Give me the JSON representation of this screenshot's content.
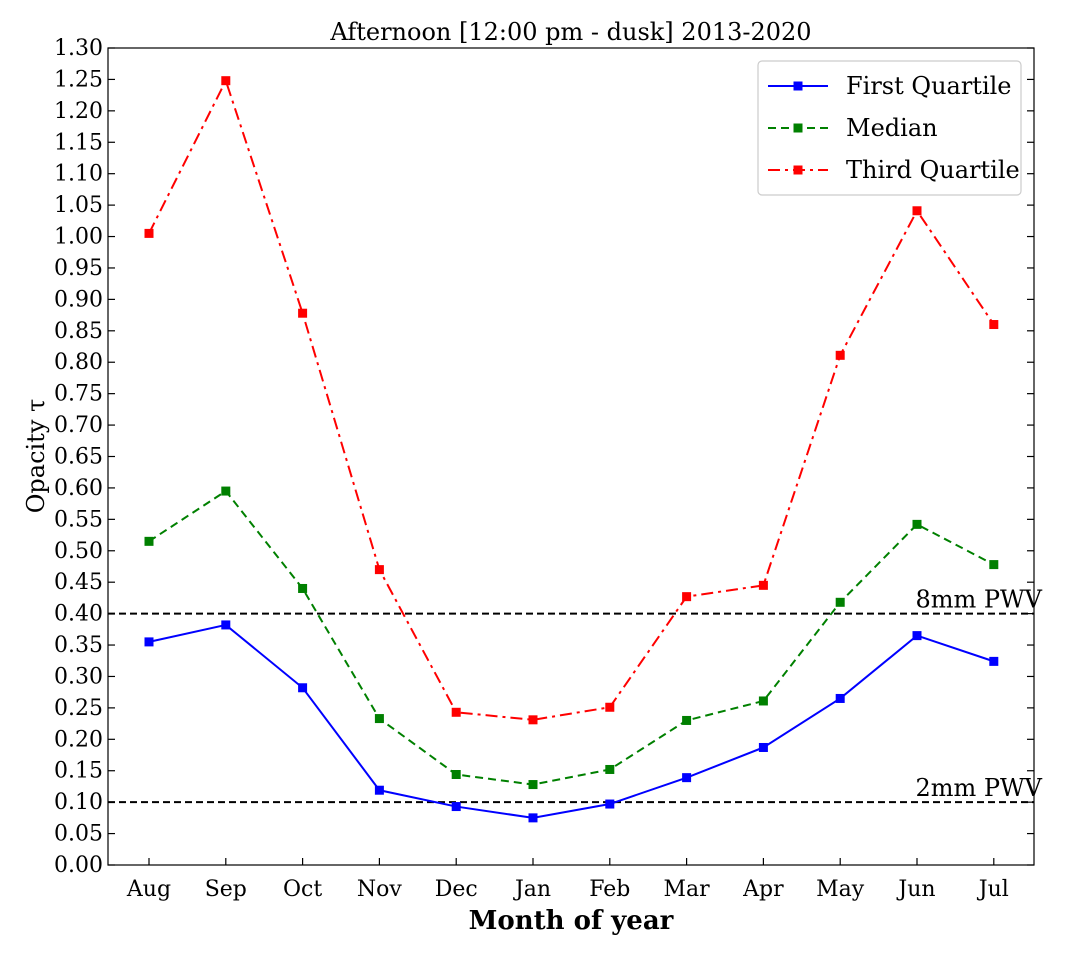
{
  "chart_data": {
    "type": "line",
    "title": "Afternoon [12:00 pm - dusk] 2013-2020",
    "xlabel": "Month of year",
    "ylabel": "Opacity τ",
    "categories": [
      "Aug",
      "Sep",
      "Oct",
      "Nov",
      "Dec",
      "Jan",
      "Feb",
      "Mar",
      "Apr",
      "May",
      "Jun",
      "Jul"
    ],
    "ylim": [
      0,
      1.3
    ],
    "yticks": [
      "0.00",
      "0.05",
      "0.10",
      "0.15",
      "0.20",
      "0.25",
      "0.30",
      "0.35",
      "0.40",
      "0.45",
      "0.50",
      "0.55",
      "0.60",
      "0.65",
      "0.70",
      "0.75",
      "0.80",
      "0.85",
      "0.90",
      "0.95",
      "1.00",
      "1.05",
      "1.10",
      "1.15",
      "1.20",
      "1.25",
      "1.30"
    ],
    "legend_position": "top-right",
    "series": [
      {
        "name": "First Quartile",
        "color": "#0000ff",
        "dash": "solid",
        "marker": "square",
        "values": [
          0.355,
          0.382,
          0.282,
          0.119,
          0.093,
          0.075,
          0.097,
          0.139,
          0.187,
          0.265,
          0.365,
          0.324
        ]
      },
      {
        "name": "Median",
        "color": "#008000",
        "dash": "dashed",
        "marker": "square",
        "values": [
          0.515,
          0.595,
          0.44,
          0.233,
          0.144,
          0.128,
          0.152,
          0.23,
          0.261,
          0.418,
          0.542,
          0.478
        ]
      },
      {
        "name": "Third Quartile",
        "color": "#ff0000",
        "dash": "dashdot",
        "marker": "square",
        "values": [
          1.005,
          1.248,
          0.878,
          0.47,
          0.243,
          0.231,
          0.251,
          0.427,
          0.445,
          0.811,
          1.041,
          0.86
        ]
      }
    ],
    "reference_lines": [
      {
        "value": 0.4,
        "label": "8mm PWV",
        "color": "#000000",
        "dash": "dashed"
      },
      {
        "value": 0.1,
        "label": "2mm PWV",
        "color": "#000000",
        "dash": "dashed"
      }
    ]
  }
}
